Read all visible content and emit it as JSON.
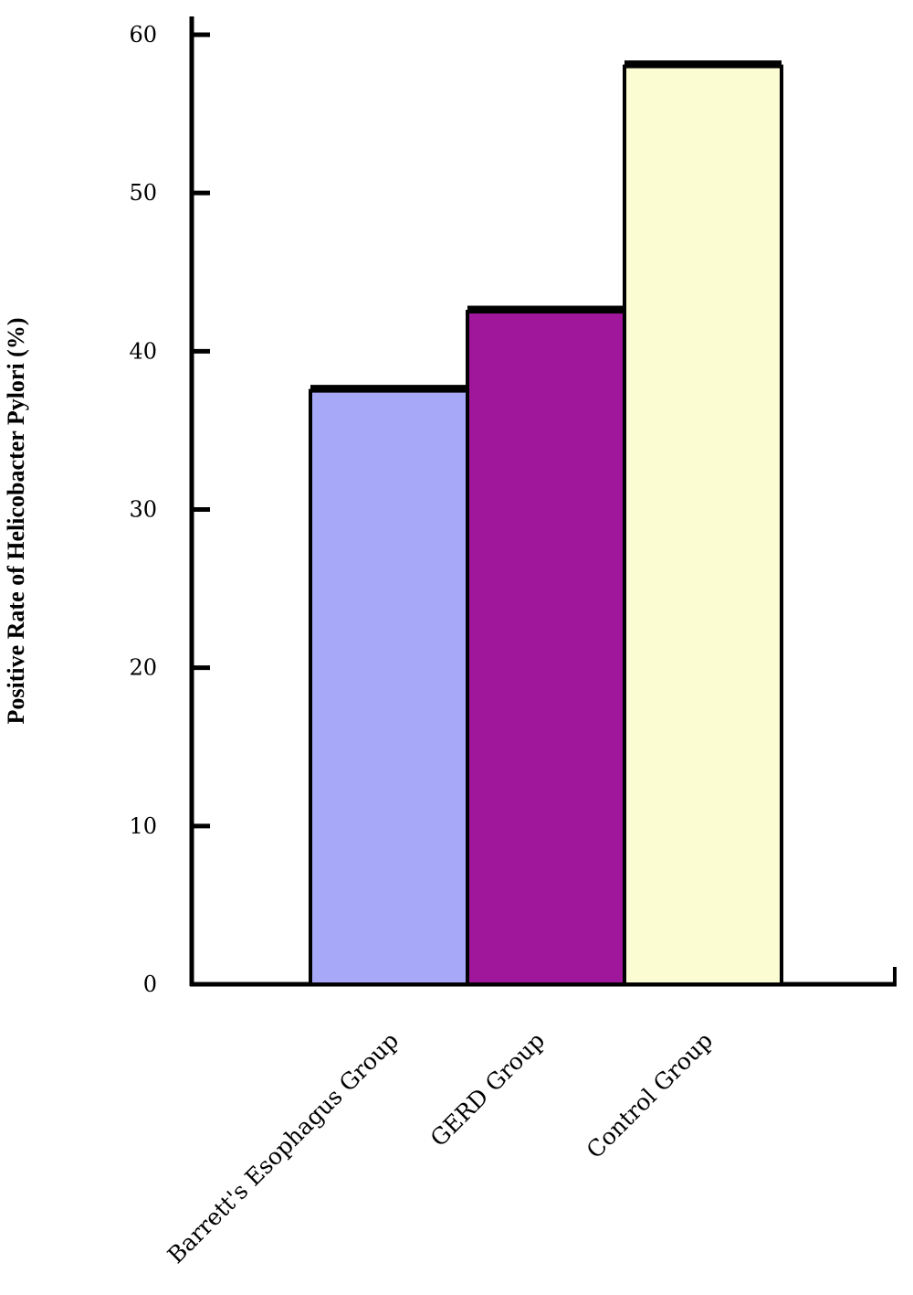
{
  "chart_data": {
    "type": "bar",
    "categories": [
      "Barrett's Esophagus Group",
      "GERD Group",
      "Control Group"
    ],
    "values": [
      37.5,
      42.5,
      58
    ],
    "colors": [
      "#a8a8f8",
      "#a0179c",
      "#fcfcd2"
    ],
    "title": "",
    "xlabel": "",
    "ylabel": "Positive Rate of Helicobacter Pylori (%)",
    "ylim": [
      0,
      60
    ],
    "yticks": [
      "0",
      "10",
      "20",
      "30",
      "40",
      "50",
      "60"
    ],
    "grid": false,
    "legend": "none"
  }
}
